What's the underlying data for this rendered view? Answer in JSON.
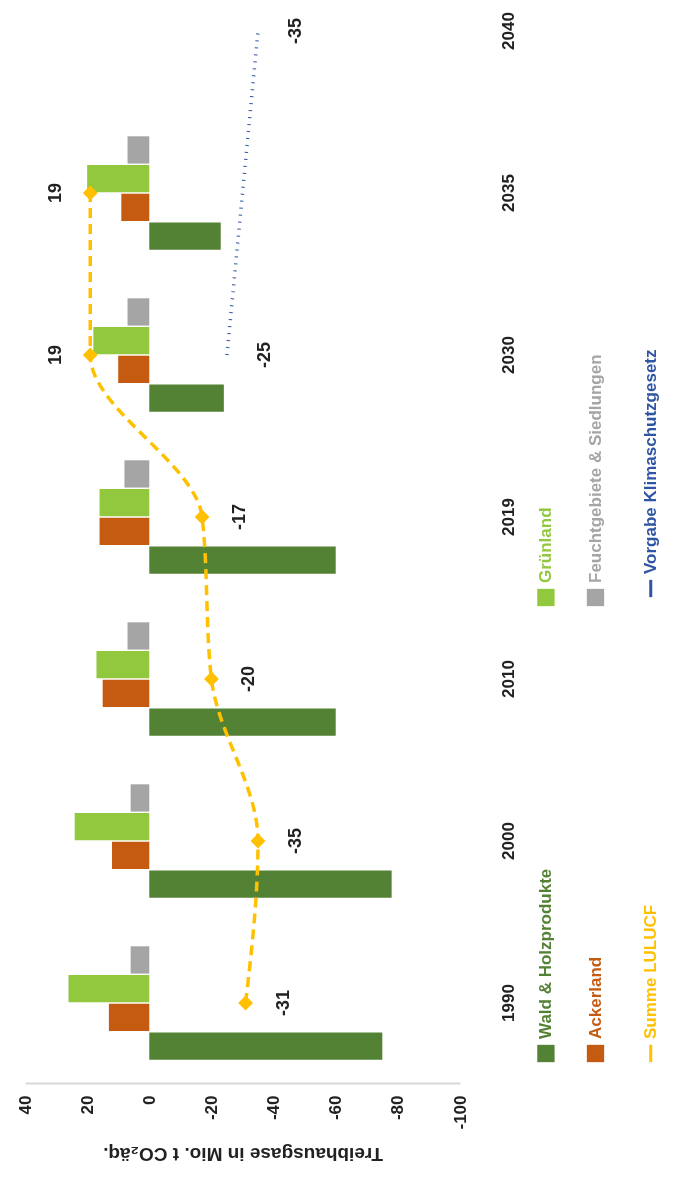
{
  "chart_data": {
    "type": "bar",
    "orientation": "horizontal",
    "categories": [
      "2040",
      "2035",
      "2030",
      "2019",
      "2010",
      "2000",
      "1990"
    ],
    "xlabel": "Treibhausgase in Mio. t CO₂äq.",
    "xlim": [
      40,
      -100
    ],
    "xticks": [
      40,
      20,
      0,
      -20,
      -40,
      -60,
      -80,
      -100
    ],
    "legend": "bottom",
    "series": [
      {
        "name": "Wald & Holzprodukte",
        "color": "#548235",
        "values": [
          null,
          -23,
          -24,
          -60,
          -60,
          -78,
          -75
        ]
      },
      {
        "name": "Ackerland",
        "color": "#c55a11",
        "values": [
          null,
          9,
          10,
          16,
          15,
          12,
          13
        ]
      },
      {
        "name": "Grünland",
        "color": "#92c83e",
        "values": [
          null,
          20,
          18,
          16,
          17,
          24,
          26
        ]
      },
      {
        "name": "Feuchtgebiete & Siedlungen",
        "color": "#a5a5a5",
        "values": [
          null,
          7,
          7,
          8,
          7,
          6,
          6
        ]
      },
      {
        "name": "Summe LULUCF",
        "type": "line",
        "color": "#ffc000",
        "line_style": "dashed",
        "marker": "diamond",
        "values": [
          null,
          19,
          19,
          -17,
          -20,
          -35,
          -31
        ],
        "value_labels": [
          null,
          "19",
          "19",
          "-17",
          "-20",
          "-35",
          "-31"
        ]
      },
      {
        "name": "Vorgabe Klimaschutzgesetz",
        "type": "line",
        "color": "#2f55a4",
        "line_style": "dotted",
        "marker": "none",
        "values": [
          -35,
          null,
          -25,
          null,
          null,
          null,
          null
        ],
        "value_labels": [
          "-35",
          null,
          "-25",
          null,
          null,
          null,
          null
        ]
      }
    ]
  }
}
